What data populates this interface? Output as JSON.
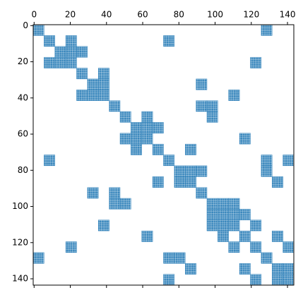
{
  "chart_data": {
    "type": "spy",
    "color": "#1f77b4",
    "block_size": 6,
    "xlim": [
      -0.5,
      143.5
    ],
    "ylim": [
      143.5,
      -0.5
    ],
    "xticks": [
      0,
      20,
      40,
      60,
      80,
      100,
      120,
      140
    ],
    "yticks": [
      0,
      20,
      40,
      60,
      80,
      100,
      120,
      140
    ],
    "blocks": {
      "rows": [
        0,
        0,
        6,
        6,
        6,
        12,
        12,
        12,
        18,
        18,
        18,
        18,
        24,
        24,
        30,
        30,
        30,
        36,
        36,
        36,
        36,
        42,
        42,
        42,
        48,
        48,
        48,
        54,
        54,
        54,
        60,
        60,
        60,
        60,
        66,
        66,
        66,
        72,
        72,
        72,
        72,
        78,
        78,
        78,
        78,
        84,
        84,
        84,
        84,
        90,
        90,
        90,
        96,
        96,
        96,
        96,
        96,
        102,
        102,
        102,
        102,
        108,
        108,
        108,
        108,
        108,
        114,
        114,
        114,
        114,
        120,
        120,
        120,
        120,
        126,
        126,
        126,
        126,
        132,
        132,
        132,
        132,
        138,
        138,
        138,
        138
      ],
      "cols": [
        0,
        126,
        6,
        18,
        72,
        12,
        18,
        24,
        6,
        12,
        18,
        120,
        24,
        36,
        30,
        36,
        90,
        24,
        30,
        36,
        108,
        42,
        90,
        96,
        48,
        60,
        96,
        54,
        60,
        66,
        48,
        54,
        60,
        114,
        54,
        66,
        84,
        6,
        72,
        126,
        138,
        78,
        84,
        90,
        126,
        66,
        78,
        84,
        132,
        30,
        42,
        90,
        42,
        48,
        96,
        102,
        108,
        102,
        108,
        114,
        96,
        36,
        96,
        102,
        108,
        120,
        60,
        102,
        114,
        132,
        18,
        108,
        120,
        138,
        0,
        72,
        78,
        126,
        84,
        114,
        132,
        138,
        72,
        120,
        132,
        138
      ]
    }
  }
}
